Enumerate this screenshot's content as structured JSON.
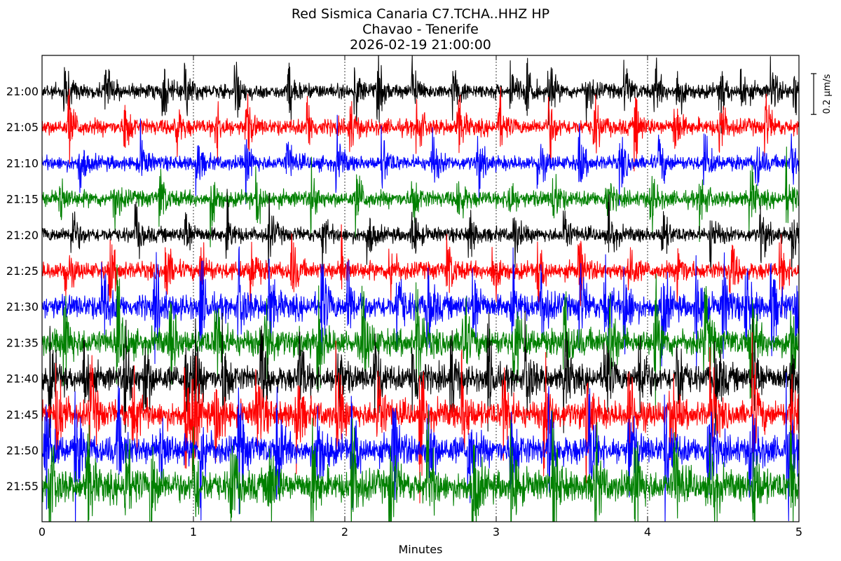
{
  "chart_data": {
    "type": "line",
    "title": "Red Sismica Canaria C7.TCHA..HHZ HP",
    "subtitle": "Chavao - Tenerife",
    "start_time": "2026-02-19 21:00:00",
    "xlabel": "Minutes",
    "xlim": [
      0,
      5
    ],
    "x_ticks": [
      "0",
      "1",
      "2",
      "3",
      "4",
      "5"
    ],
    "grid_vertical_dotted": [
      1,
      2,
      3,
      4
    ],
    "scale_bar_label": "0.2 μm/s",
    "scale_bar_units": 0.2,
    "line_spacing_units": 0.08,
    "rows": [
      {
        "label": "21:00",
        "color": "#000000",
        "noise": 0.011,
        "events": [
          0.15,
          0.42,
          0.8,
          0.95,
          1.28,
          1.63,
          2.07,
          2.22,
          2.45,
          2.72,
          3.1,
          3.2,
          3.35,
          3.6,
          3.85,
          4.05,
          4.2,
          4.48,
          4.62,
          4.82,
          4.97
        ]
      },
      {
        "label": "21:05",
        "color": "#ff0000",
        "noise": 0.012,
        "events": [
          0.18,
          0.55,
          0.88,
          1.15,
          1.35,
          1.75,
          2.03,
          2.48,
          2.75,
          3.02,
          3.35,
          3.65,
          3.92,
          4.18,
          4.48,
          4.78
        ]
      },
      {
        "label": "21:10",
        "color": "#0000ff",
        "noise": 0.011,
        "events": [
          0.25,
          0.65,
          1.02,
          1.35,
          1.62,
          1.95,
          2.25,
          2.58,
          2.88,
          3.28,
          3.55,
          3.82,
          4.08,
          4.38,
          4.72,
          4.95
        ]
      },
      {
        "label": "21:15",
        "color": "#008000",
        "noise": 0.012,
        "events": [
          0.12,
          0.48,
          0.78,
          1.12,
          1.42,
          1.78,
          2.08,
          2.45,
          2.75,
          3.08,
          3.38,
          3.72,
          4.02,
          4.35,
          4.68,
          4.92
        ]
      },
      {
        "label": "21:20",
        "color": "#000000",
        "noise": 0.011,
        "events": [
          0.2,
          0.62,
          0.95,
          1.22,
          1.5,
          1.85,
          2.15,
          2.45,
          2.82,
          3.12,
          3.45,
          3.75,
          4.1,
          4.42,
          4.75,
          4.96
        ]
      },
      {
        "label": "21:25",
        "color": "#ff0000",
        "noise": 0.013,
        "events": [
          0.15,
          0.45,
          0.82,
          1.05,
          1.38,
          1.65,
          1.98,
          2.3,
          2.68,
          2.98,
          3.28,
          3.55,
          3.88,
          4.2,
          4.55,
          4.88
        ]
      },
      {
        "label": "21:30",
        "color": "#0000ff",
        "noise": 0.018,
        "events": [
          0.4,
          0.75,
          1.05,
          1.3,
          1.5,
          1.85,
          2.02,
          2.35,
          2.55,
          2.85,
          3.1,
          3.3,
          3.55,
          3.72,
          3.85,
          4.1,
          4.32,
          4.5,
          4.65,
          4.82,
          4.98
        ]
      },
      {
        "label": "21:35",
        "color": "#008000",
        "noise": 0.02,
        "events": [
          0.15,
          0.5,
          0.85,
          1.15,
          1.48,
          1.82,
          2.12,
          2.48,
          2.78,
          3.12,
          3.45,
          3.75,
          4.05,
          4.38,
          4.68,
          4.95
        ]
      },
      {
        "label": "21:40",
        "color": "#000000",
        "noise": 0.019,
        "events": [
          0.05,
          0.28,
          0.55,
          0.68,
          0.95,
          1.0,
          1.2,
          1.45,
          1.7,
          1.95,
          2.2,
          2.45,
          2.7,
          2.95,
          3.2,
          3.45,
          3.72,
          3.95,
          4.2,
          4.45,
          4.7,
          4.95
        ]
      },
      {
        "label": "21:45",
        "color": "#ff0000",
        "noise": 0.02,
        "events": [
          0.1,
          0.32,
          0.6,
          0.95,
          1.0,
          1.15,
          1.42,
          1.68,
          1.95,
          2.22,
          2.5,
          2.78,
          3.05,
          3.32,
          3.6,
          3.88,
          4.15,
          4.42,
          4.7,
          4.95
        ]
      },
      {
        "label": "21:50",
        "color": "#0000ff",
        "noise": 0.021,
        "events": [
          0.02,
          0.22,
          0.5,
          0.78,
          1.05,
          1.3,
          1.55,
          1.82,
          2.05,
          2.32,
          2.55,
          2.82,
          3.1,
          3.35,
          3.62,
          3.88,
          4.12,
          4.4,
          4.68,
          4.92
        ]
      },
      {
        "label": "21:55",
        "color": "#008000",
        "noise": 0.023,
        "events": [
          0.05,
          0.3,
          0.55,
          0.72,
          1.0,
          1.25,
          1.5,
          1.78,
          2.05,
          2.3,
          2.55,
          2.85,
          3.1,
          3.38,
          3.65,
          3.92,
          4.18,
          4.42,
          4.7,
          4.95
        ]
      }
    ]
  }
}
